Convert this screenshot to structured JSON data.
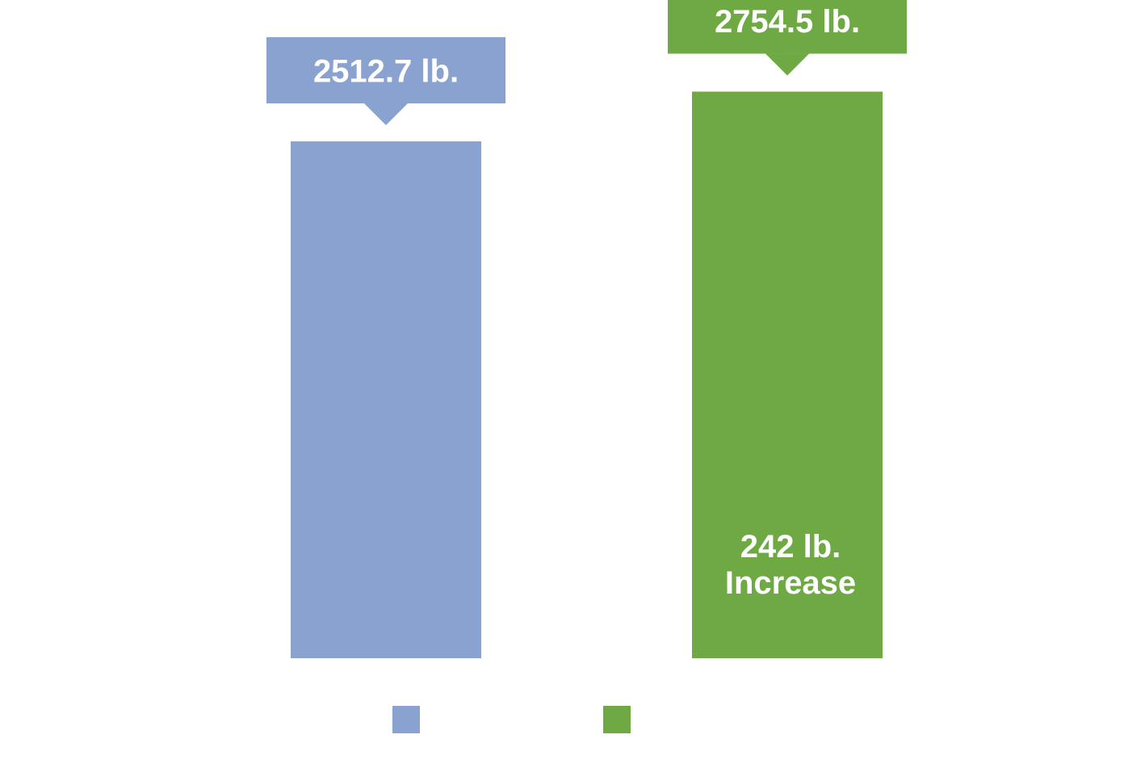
{
  "chart_data": {
    "type": "bar",
    "title": "",
    "xlabel": "",
    "ylabel": "",
    "categories": [
      "",
      ""
    ],
    "values": [
      2512.7,
      2754.5
    ],
    "ylim": [
      0,
      3200
    ],
    "grid": false,
    "legend": "bottom",
    "colors": [
      "#8aa2d0",
      "#6ea944"
    ],
    "callouts": [
      "2512.7 lb.",
      "2754.5 lb."
    ],
    "annotation": {
      "line1": "242 lb.",
      "line2": "Increase"
    }
  }
}
